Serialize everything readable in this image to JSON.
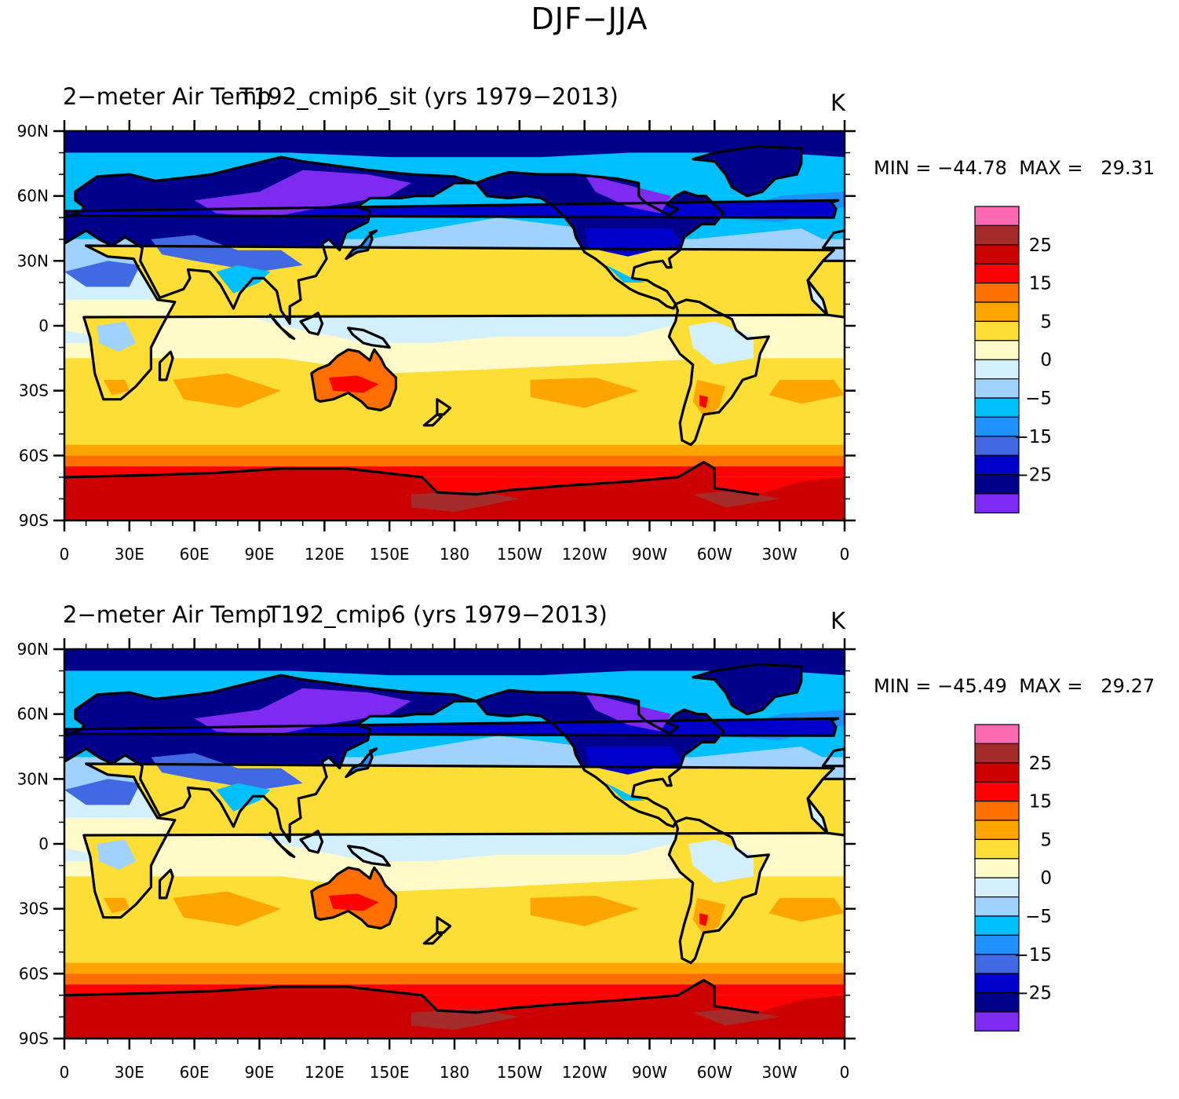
{
  "main_title": "DJF−JJA",
  "colors": {
    "levels": [
      "#7f2af0",
      "#00008b",
      "#0000cd",
      "#4169e1",
      "#1e90ff",
      "#00bfff",
      "#a0d2ff",
      "#d2f0ff",
      "#fffac8",
      "#fdde37",
      "#ffa500",
      "#ff6f00",
      "#ff0000",
      "#cd0000",
      "#a52a2a",
      "#ff69b4"
    ]
  },
  "panels": [
    {
      "id": "top",
      "title_left": "2−meter Air Temp",
      "title_center": "T192_cmip6_sit (yrs 1979−2013)",
      "title_right": "K",
      "min_label": "MIN = ",
      "min_value": "−44.78",
      "max_label": "MAX = ",
      "max_value": "29.31"
    },
    {
      "id": "bottom",
      "title_left": "2−meter Air Temp",
      "title_center": "T192_cmip6 (yrs 1979−2013)",
      "title_right": "K",
      "min_label": "MIN = ",
      "min_value": "−45.49",
      "max_label": "MAX = ",
      "max_value": "29.27"
    }
  ],
  "axes": {
    "lat_labels": [
      "90N",
      "60N",
      "30N",
      "0",
      "30S",
      "60S",
      "90S"
    ],
    "lon_labels": [
      "0",
      "30E",
      "60E",
      "90E",
      "120E",
      "150E",
      "180",
      "150W",
      "120W",
      "90W",
      "60W",
      "30W",
      "0"
    ]
  },
  "colorbar": {
    "labels": [
      "25",
      "15",
      "5",
      "0",
      "−5",
      "−15",
      "−25"
    ]
  }
}
